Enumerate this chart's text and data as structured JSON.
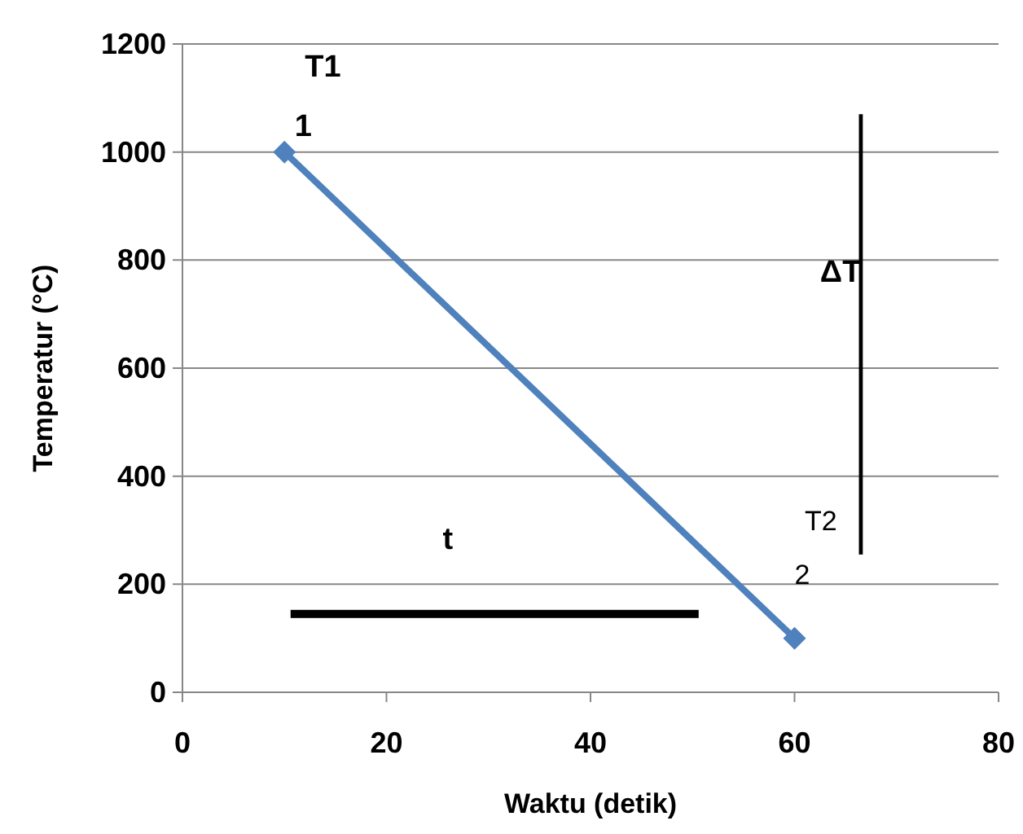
{
  "chart_data": {
    "type": "line",
    "xlabel": "Waktu (detik)",
    "ylabel": "Temperatur (°C)",
    "x": [
      10,
      60
    ],
    "series": [
      {
        "color": "#4f81bd",
        "values": [
          1000,
          100
        ]
      }
    ],
    "xlim": [
      0,
      80
    ],
    "xticks": [
      0,
      20,
      40,
      60,
      80
    ],
    "ylim": [
      0,
      1200
    ],
    "yticks": [
      0,
      200,
      400,
      600,
      800,
      1000,
      1200
    ],
    "grid": "y",
    "marker": "diamond",
    "line_style": "solid",
    "annotations": [
      "T1",
      "1",
      "T2",
      "2",
      "ΔT",
      "t"
    ]
  }
}
